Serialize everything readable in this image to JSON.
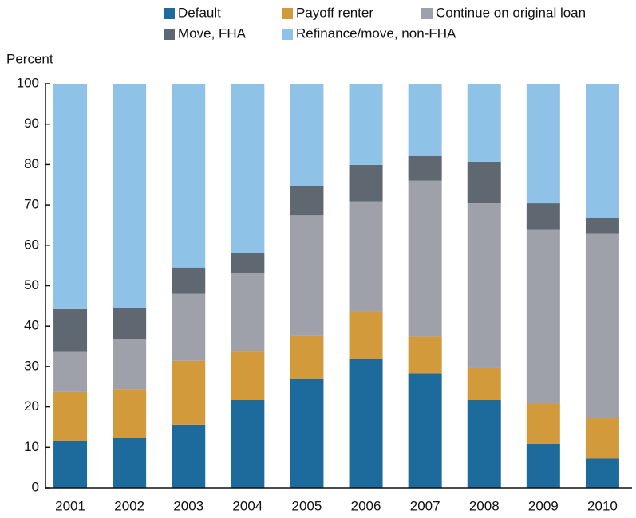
{
  "chart_data": {
    "type": "stacked_bar",
    "y_label": "Percent",
    "categories": [
      "2001",
      "2002",
      "2003",
      "2004",
      "2005",
      "2006",
      "2007",
      "2008",
      "2009",
      "2010"
    ],
    "series": [
      {
        "name": "Default",
        "color": "#1c6b9c",
        "values": [
          11.5,
          12.4,
          15.6,
          21.7,
          27,
          31.8,
          28.3,
          21.7,
          10.9,
          7.2
        ]
      },
      {
        "name": "Payoff renter",
        "color": "#d29a3a",
        "values": [
          12.2,
          12,
          15.8,
          12,
          10.7,
          11.9,
          9.1,
          7.9,
          9.9,
          10.1
        ]
      },
      {
        "name": "Continue on original loan",
        "color": "#9ea1a9",
        "values": [
          9.9,
          12.3,
          16.6,
          19.4,
          29.7,
          27.2,
          38.6,
          40.8,
          43.2,
          45.5
        ]
      },
      {
        "name": "Move, FHA",
        "color": "#5f6771",
        "values": [
          10.6,
          7.8,
          6.5,
          5,
          7.4,
          9,
          6.1,
          10.3,
          6.4,
          4
        ]
      },
      {
        "name": "Refinance/move, non-FHA",
        "color": "#8ec2e6",
        "values": [
          55.8,
          55.5,
          45.5,
          41.9,
          25.2,
          20.1,
          17.9,
          19.3,
          29.6,
          33.2
        ]
      }
    ],
    "ylim": [
      0,
      100
    ],
    "yticks": [
      0,
      10,
      20,
      30,
      40,
      50,
      60,
      70,
      80,
      90,
      100
    ],
    "grid": false
  }
}
